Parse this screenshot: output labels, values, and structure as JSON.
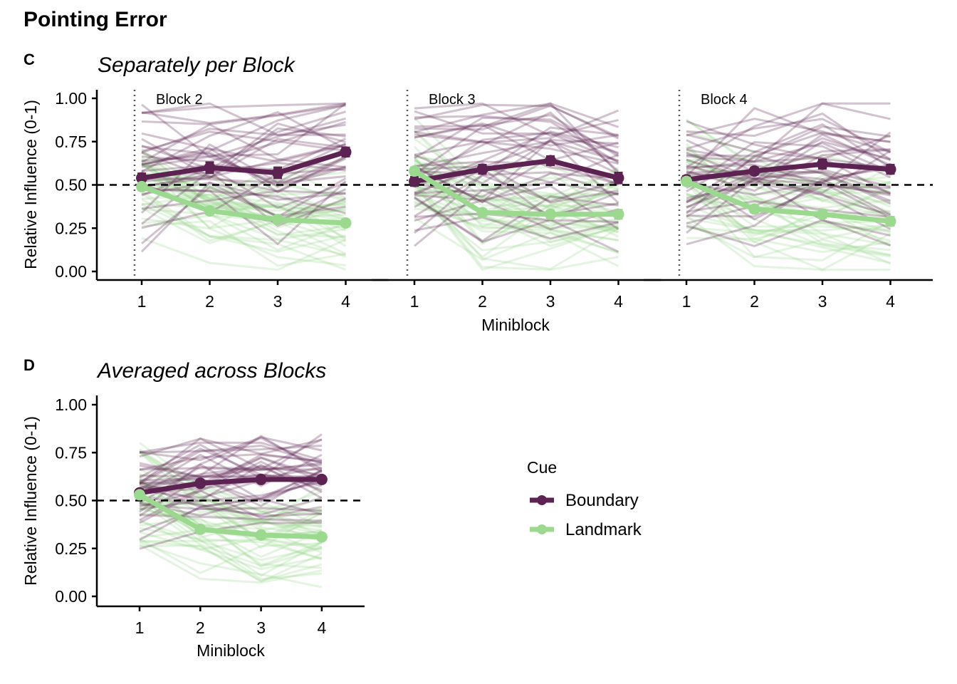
{
  "title": "Pointing Error",
  "colors": {
    "boundary": "#5c2352",
    "landmark": "#9bd98f"
  },
  "chart_data": [
    {
      "type": "line",
      "tag": "C",
      "title": "Separately per Block",
      "xlabel": "Miniblock",
      "ylabel": "Relative Influence (0-1)",
      "ylim": [
        0,
        1
      ],
      "yticks": [
        "0.00",
        "0.25",
        "0.50",
        "0.75",
        "1.00"
      ],
      "x": [
        1,
        2,
        3,
        4
      ],
      "reference_line": 0.5,
      "panels": [
        {
          "label": "Block 2",
          "series": [
            {
              "name": "Boundary",
              "values": [
                0.54,
                0.6,
                0.57,
                0.69
              ],
              "err": [
                0.025,
                0.03,
                0.03,
                0.025
              ]
            },
            {
              "name": "Landmark",
              "values": [
                0.49,
                0.35,
                0.3,
                0.28
              ],
              "err": [
                0.02,
                0.02,
                0.02,
                0.02
              ]
            }
          ]
        },
        {
          "label": "Block 3",
          "series": [
            {
              "name": "Boundary",
              "values": [
                0.52,
                0.59,
                0.64,
                0.54
              ],
              "err": [
                0.025,
                0.025,
                0.025,
                0.03
              ]
            },
            {
              "name": "Landmark",
              "values": [
                0.58,
                0.34,
                0.33,
                0.33
              ],
              "err": [
                0.02,
                0.02,
                0.02,
                0.025
              ]
            }
          ]
        },
        {
          "label": "Block 4",
          "series": [
            {
              "name": "Boundary",
              "values": [
                0.53,
                0.58,
                0.62,
                0.59
              ],
              "err": [
                0.02,
                0.02,
                0.025,
                0.025
              ]
            },
            {
              "name": "Landmark",
              "values": [
                0.52,
                0.36,
                0.33,
                0.29
              ],
              "err": [
                0.02,
                0.02,
                0.02,
                0.025
              ]
            }
          ]
        }
      ]
    },
    {
      "type": "line",
      "tag": "D",
      "title": "Averaged across Blocks",
      "xlabel": "Miniblock",
      "ylabel": "Relative Influence (0-1)",
      "ylim": [
        0,
        1
      ],
      "yticks": [
        "0.00",
        "0.25",
        "0.50",
        "0.75",
        "1.00"
      ],
      "x": [
        1,
        2,
        3,
        4
      ],
      "reference_line": 0.5,
      "series": [
        {
          "name": "Boundary",
          "values": [
            0.54,
            0.59,
            0.61,
            0.61
          ],
          "err": [
            0.015,
            0.015,
            0.015,
            0.015
          ]
        },
        {
          "name": "Landmark",
          "values": [
            0.53,
            0.35,
            0.32,
            0.31
          ],
          "err": [
            0.015,
            0.015,
            0.015,
            0.015
          ]
        }
      ]
    }
  ],
  "legend": {
    "title": "Cue",
    "items": [
      {
        "label": "Boundary",
        "color": "#5c2352"
      },
      {
        "label": "Landmark",
        "color": "#9bd98f"
      }
    ]
  }
}
